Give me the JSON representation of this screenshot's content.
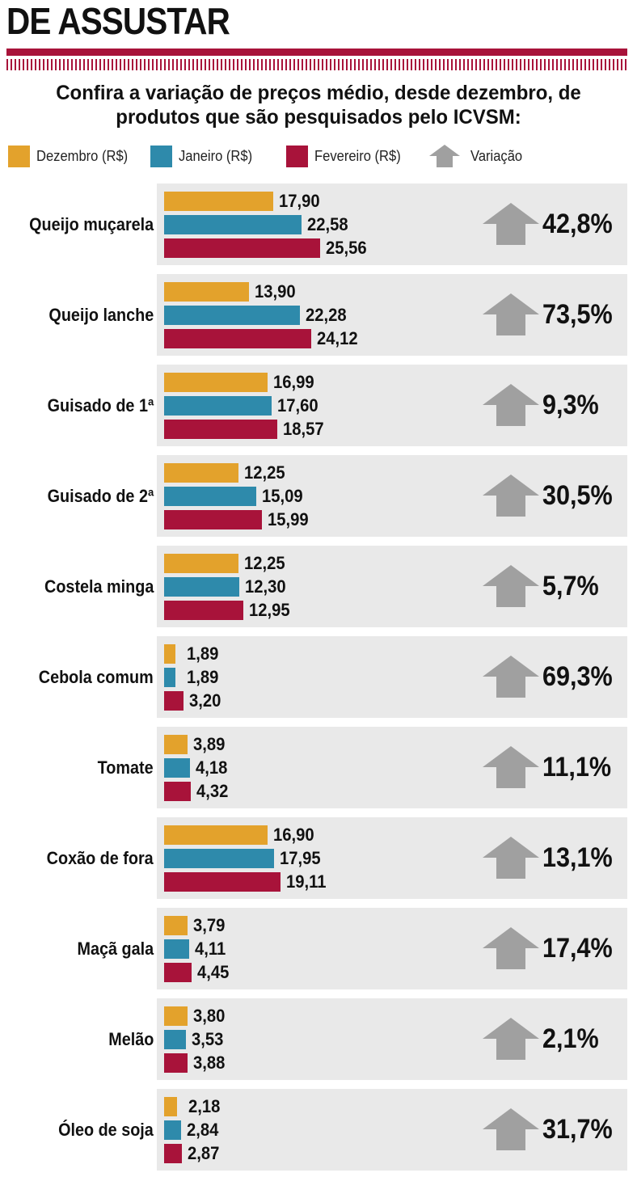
{
  "header": {
    "headline": "DE ASSUSTAR",
    "subtitle_line1": "Confira a variação de preços médio, desde dezembro, de",
    "subtitle_line2": "produtos que são pesquisados pelo ICVSM:"
  },
  "colors": {
    "dezembro": "#e3a22c",
    "janeiro": "#2e8aab",
    "fevereiro": "#a8133a",
    "variacao": "#a0a0a0",
    "panel": "#e9e9e9",
    "rule": "#a8133a"
  },
  "legend": [
    {
      "label": "Dezembro (R$)",
      "color": "#e3a22c",
      "kind": "swatch"
    },
    {
      "label": "Janeiro (R$)",
      "color": "#2e8aab",
      "kind": "swatch"
    },
    {
      "label": "Fevereiro (R$)",
      "color": "#a8133a",
      "kind": "swatch"
    },
    {
      "label": "Variação",
      "color": "#a0a0a0",
      "kind": "arrow-up-icon"
    }
  ],
  "chart_data": {
    "type": "bar",
    "orientation": "horizontal",
    "title": "Confira a variação de preços médio, desde dezembro, de produtos que são pesquisados pelo ICVSM:",
    "legend_position": "top",
    "grid": false,
    "xlim": [
      0,
      25.56
    ],
    "categories": [
      "Queijo muçarela",
      "Queijo lanche",
      "Guisado de 1ª",
      "Guisado de 2ª",
      "Costela minga",
      "Cebola comum",
      "Tomate",
      "Coxão de fora",
      "Maçã gala",
      "Melão",
      "Óleo de soja"
    ],
    "series": [
      {
        "name": "Dezembro (R$)",
        "values": [
          17.9,
          13.9,
          16.99,
          12.25,
          12.25,
          1.89,
          3.89,
          16.9,
          3.79,
          3.8,
          2.18
        ],
        "labels": [
          "17,90",
          "13,90",
          "16,99",
          "12,25",
          "12,25",
          "1,89",
          "3,89",
          "16,90",
          "3,79",
          "3,80",
          "2,18"
        ]
      },
      {
        "name": "Janeiro (R$)",
        "values": [
          22.58,
          22.28,
          17.6,
          15.09,
          12.3,
          1.89,
          4.18,
          17.95,
          4.11,
          3.53,
          2.84
        ],
        "labels": [
          "22,58",
          "22,28",
          "17,60",
          "15,09",
          "12,30",
          "1,89",
          "4,18",
          "17,95",
          "4,11",
          "3,53",
          "2,84"
        ]
      },
      {
        "name": "Fevereiro (R$)",
        "values": [
          25.56,
          24.12,
          18.57,
          15.99,
          12.95,
          3.2,
          4.32,
          19.11,
          4.45,
          3.88,
          2.87
        ],
        "labels": [
          "25,56",
          "24,12",
          "18,57",
          "15,99",
          "12,95",
          "3,20",
          "4,32",
          "19,11",
          "4,45",
          "3,88",
          "2,87"
        ]
      }
    ],
    "variacao": [
      "42,8%",
      "73,5%",
      "9,3%",
      "30,5%",
      "5,7%",
      "69,3%",
      "11,1%",
      "13,1%",
      "17,4%",
      "2,1%",
      "31,7%"
    ]
  }
}
